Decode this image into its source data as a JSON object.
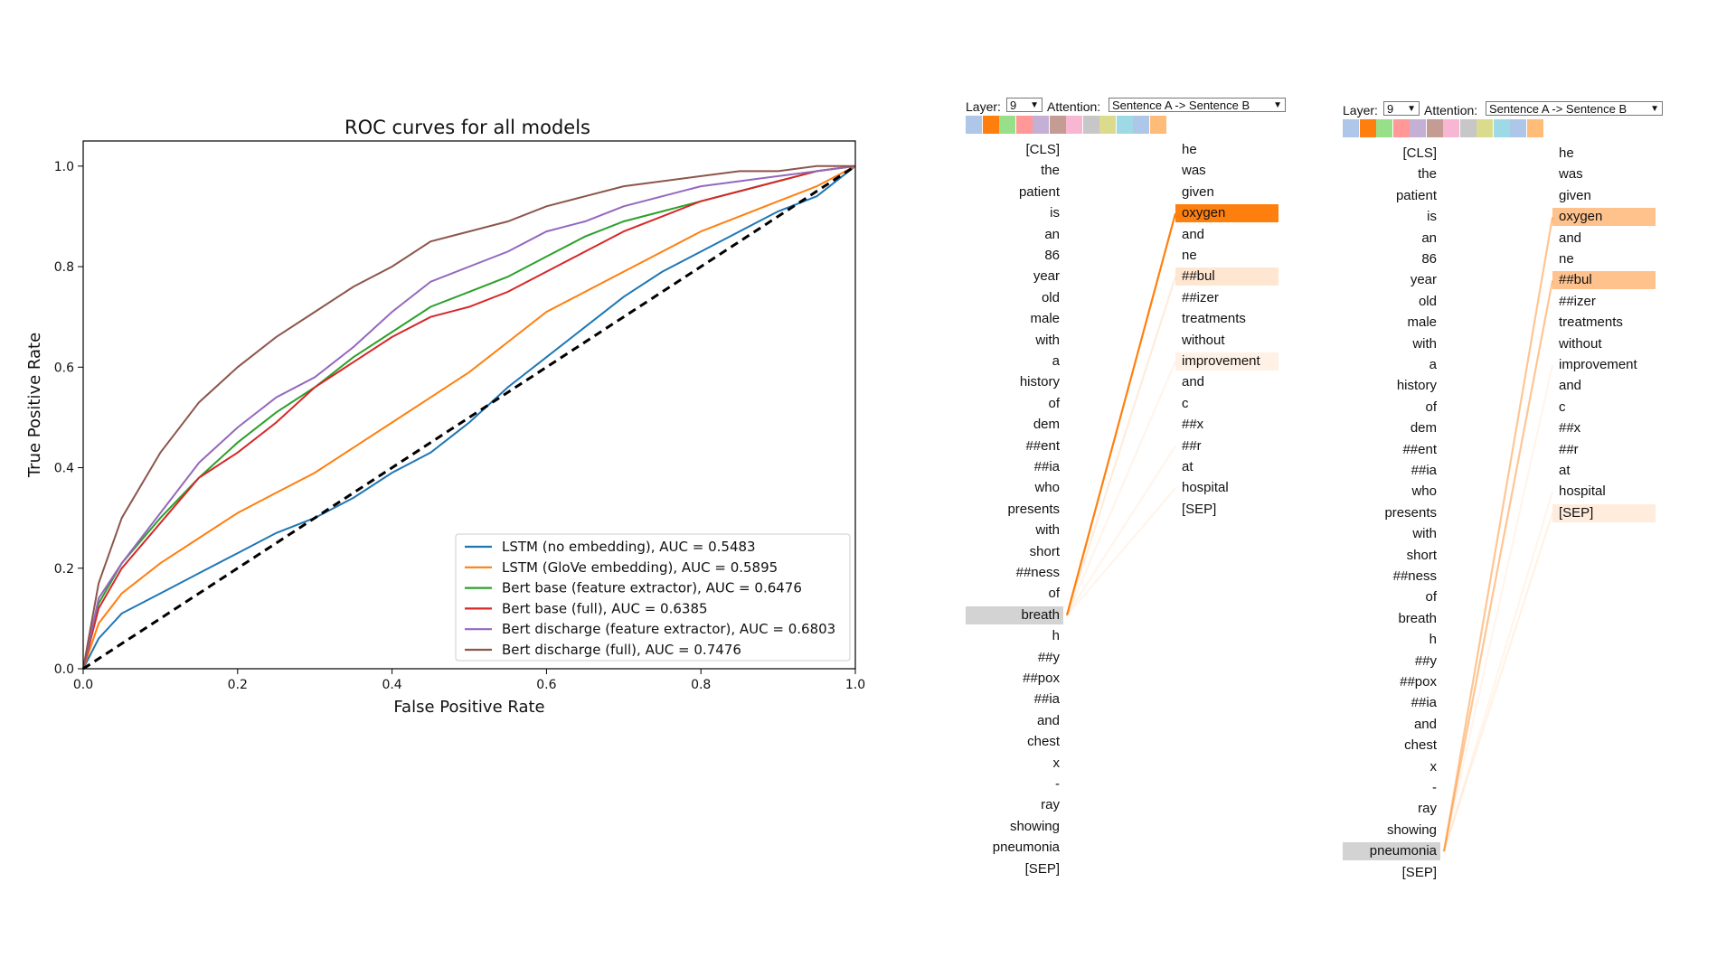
{
  "chart_data": {
    "type": "line",
    "title": "ROC curves for all models",
    "xlabel": "False Positive Rate",
    "ylabel": "True Positive Rate",
    "xlim": [
      0,
      1
    ],
    "ylim": [
      0,
      1.05
    ],
    "xticks": [
      "0.0",
      "0.2",
      "0.4",
      "0.6",
      "0.8",
      "1.0"
    ],
    "yticks": [
      "0.0",
      "0.2",
      "0.4",
      "0.6",
      "0.8",
      "1.0"
    ],
    "grid": false,
    "legend_position": "lower-right",
    "diagonal": true,
    "series": [
      {
        "name": "LSTM (no embedding), AUC = 0.5483",
        "color": "#1f77b4",
        "x": [
          0,
          0.02,
          0.05,
          0.1,
          0.15,
          0.2,
          0.25,
          0.3,
          0.35,
          0.4,
          0.45,
          0.5,
          0.55,
          0.6,
          0.65,
          0.7,
          0.75,
          0.8,
          0.85,
          0.9,
          0.95,
          1.0
        ],
        "y": [
          0,
          0.06,
          0.11,
          0.15,
          0.19,
          0.23,
          0.27,
          0.3,
          0.34,
          0.39,
          0.43,
          0.49,
          0.56,
          0.62,
          0.68,
          0.74,
          0.79,
          0.83,
          0.87,
          0.91,
          0.94,
          1.0
        ]
      },
      {
        "name": "LSTM (GloVe embedding), AUC = 0.5895",
        "color": "#ff7f0e",
        "x": [
          0,
          0.02,
          0.05,
          0.1,
          0.15,
          0.2,
          0.25,
          0.3,
          0.35,
          0.4,
          0.45,
          0.5,
          0.55,
          0.6,
          0.65,
          0.7,
          0.75,
          0.8,
          0.85,
          0.9,
          0.95,
          1.0
        ],
        "y": [
          0,
          0.09,
          0.15,
          0.21,
          0.26,
          0.31,
          0.35,
          0.39,
          0.44,
          0.49,
          0.54,
          0.59,
          0.65,
          0.71,
          0.75,
          0.79,
          0.83,
          0.87,
          0.9,
          0.93,
          0.96,
          1.0
        ]
      },
      {
        "name": "Bert base (feature extractor), AUC = 0.6476",
        "color": "#2ca02c",
        "x": [
          0,
          0.02,
          0.05,
          0.1,
          0.15,
          0.2,
          0.25,
          0.3,
          0.35,
          0.4,
          0.45,
          0.5,
          0.55,
          0.6,
          0.65,
          0.7,
          0.75,
          0.8,
          0.85,
          0.9,
          0.95,
          1.0
        ],
        "y": [
          0,
          0.13,
          0.21,
          0.3,
          0.38,
          0.45,
          0.51,
          0.56,
          0.62,
          0.67,
          0.72,
          0.75,
          0.78,
          0.82,
          0.86,
          0.89,
          0.91,
          0.93,
          0.95,
          0.97,
          0.99,
          1.0
        ]
      },
      {
        "name": "Bert base (full), AUC = 0.6385",
        "color": "#d62728",
        "x": [
          0,
          0.02,
          0.05,
          0.1,
          0.15,
          0.2,
          0.25,
          0.3,
          0.35,
          0.4,
          0.45,
          0.5,
          0.55,
          0.6,
          0.65,
          0.7,
          0.75,
          0.8,
          0.85,
          0.9,
          0.95,
          1.0
        ],
        "y": [
          0,
          0.12,
          0.2,
          0.29,
          0.38,
          0.43,
          0.49,
          0.56,
          0.61,
          0.66,
          0.7,
          0.72,
          0.75,
          0.79,
          0.83,
          0.87,
          0.9,
          0.93,
          0.95,
          0.97,
          0.99,
          1.0
        ]
      },
      {
        "name": "Bert discharge (feature extractor), AUC = 0.6803",
        "color": "#9467bd",
        "x": [
          0,
          0.02,
          0.05,
          0.1,
          0.15,
          0.2,
          0.25,
          0.3,
          0.35,
          0.4,
          0.45,
          0.5,
          0.55,
          0.6,
          0.65,
          0.7,
          0.75,
          0.8,
          0.85,
          0.9,
          0.95,
          1.0
        ],
        "y": [
          0,
          0.14,
          0.21,
          0.31,
          0.41,
          0.48,
          0.54,
          0.58,
          0.64,
          0.71,
          0.77,
          0.8,
          0.83,
          0.87,
          0.89,
          0.92,
          0.94,
          0.96,
          0.97,
          0.98,
          0.99,
          1.0
        ]
      },
      {
        "name": "Bert discharge (full), AUC = 0.7476",
        "color": "#8c564b",
        "x": [
          0,
          0.02,
          0.05,
          0.1,
          0.15,
          0.2,
          0.25,
          0.3,
          0.35,
          0.4,
          0.45,
          0.5,
          0.55,
          0.6,
          0.65,
          0.7,
          0.75,
          0.8,
          0.85,
          0.9,
          0.95,
          1.0
        ],
        "y": [
          0,
          0.17,
          0.3,
          0.43,
          0.53,
          0.6,
          0.66,
          0.71,
          0.76,
          0.8,
          0.85,
          0.87,
          0.89,
          0.92,
          0.94,
          0.96,
          0.97,
          0.98,
          0.99,
          0.99,
          1.0,
          1.0
        ]
      }
    ]
  },
  "attention": {
    "layer_label": "Layer:",
    "layer_value": "9",
    "attention_label": "Attention:",
    "attention_value": "Sentence A -> Sentence B",
    "head_colors": [
      "#aec7e8",
      "#ff7f0e",
      "#98df8a",
      "#ff9896",
      "#c5b0d5",
      "#c49c94",
      "#f7b6d2",
      "#c7c7c7",
      "#dbdb8d",
      "#9edae5",
      "#aec7e8",
      "#ffbb78"
    ],
    "sentence_a": [
      "[CLS]",
      "the",
      "patient",
      "is",
      "an",
      "86",
      "year",
      "old",
      "male",
      "with",
      "a",
      "history",
      "of",
      "dem",
      "##ent",
      "##ia",
      "who",
      "presents",
      "with",
      "short",
      "##ness",
      "of",
      "breath",
      "h",
      "##y",
      "##pox",
      "##ia",
      "and",
      "chest",
      "x",
      "-",
      "ray",
      "showing",
      "pneumonia",
      "[SEP]"
    ],
    "sentence_b": [
      "he",
      "was",
      "given",
      "oxygen",
      "and",
      "ne",
      "##bul",
      "##izer",
      "treatments",
      "without",
      "improvement",
      "and",
      "c",
      "##x",
      "##r",
      "at",
      "hospital",
      "[SEP]"
    ],
    "panels": [
      {
        "selected": 22,
        "targets": [
          {
            "i": 3,
            "w": 1.0
          },
          {
            "i": 6,
            "w": 0.15
          },
          {
            "i": 10,
            "w": 0.06
          },
          {
            "i": 14,
            "w": 0.05
          },
          {
            "i": 16,
            "w": 0.04
          }
        ]
      },
      {
        "selected": 33,
        "targets": [
          {
            "i": 3,
            "w": 0.45
          },
          {
            "i": 6,
            "w": 0.45
          },
          {
            "i": 17,
            "w": 0.1
          },
          {
            "i": 16,
            "w": 0.05
          },
          {
            "i": 10,
            "w": 0.05
          }
        ]
      }
    ]
  }
}
